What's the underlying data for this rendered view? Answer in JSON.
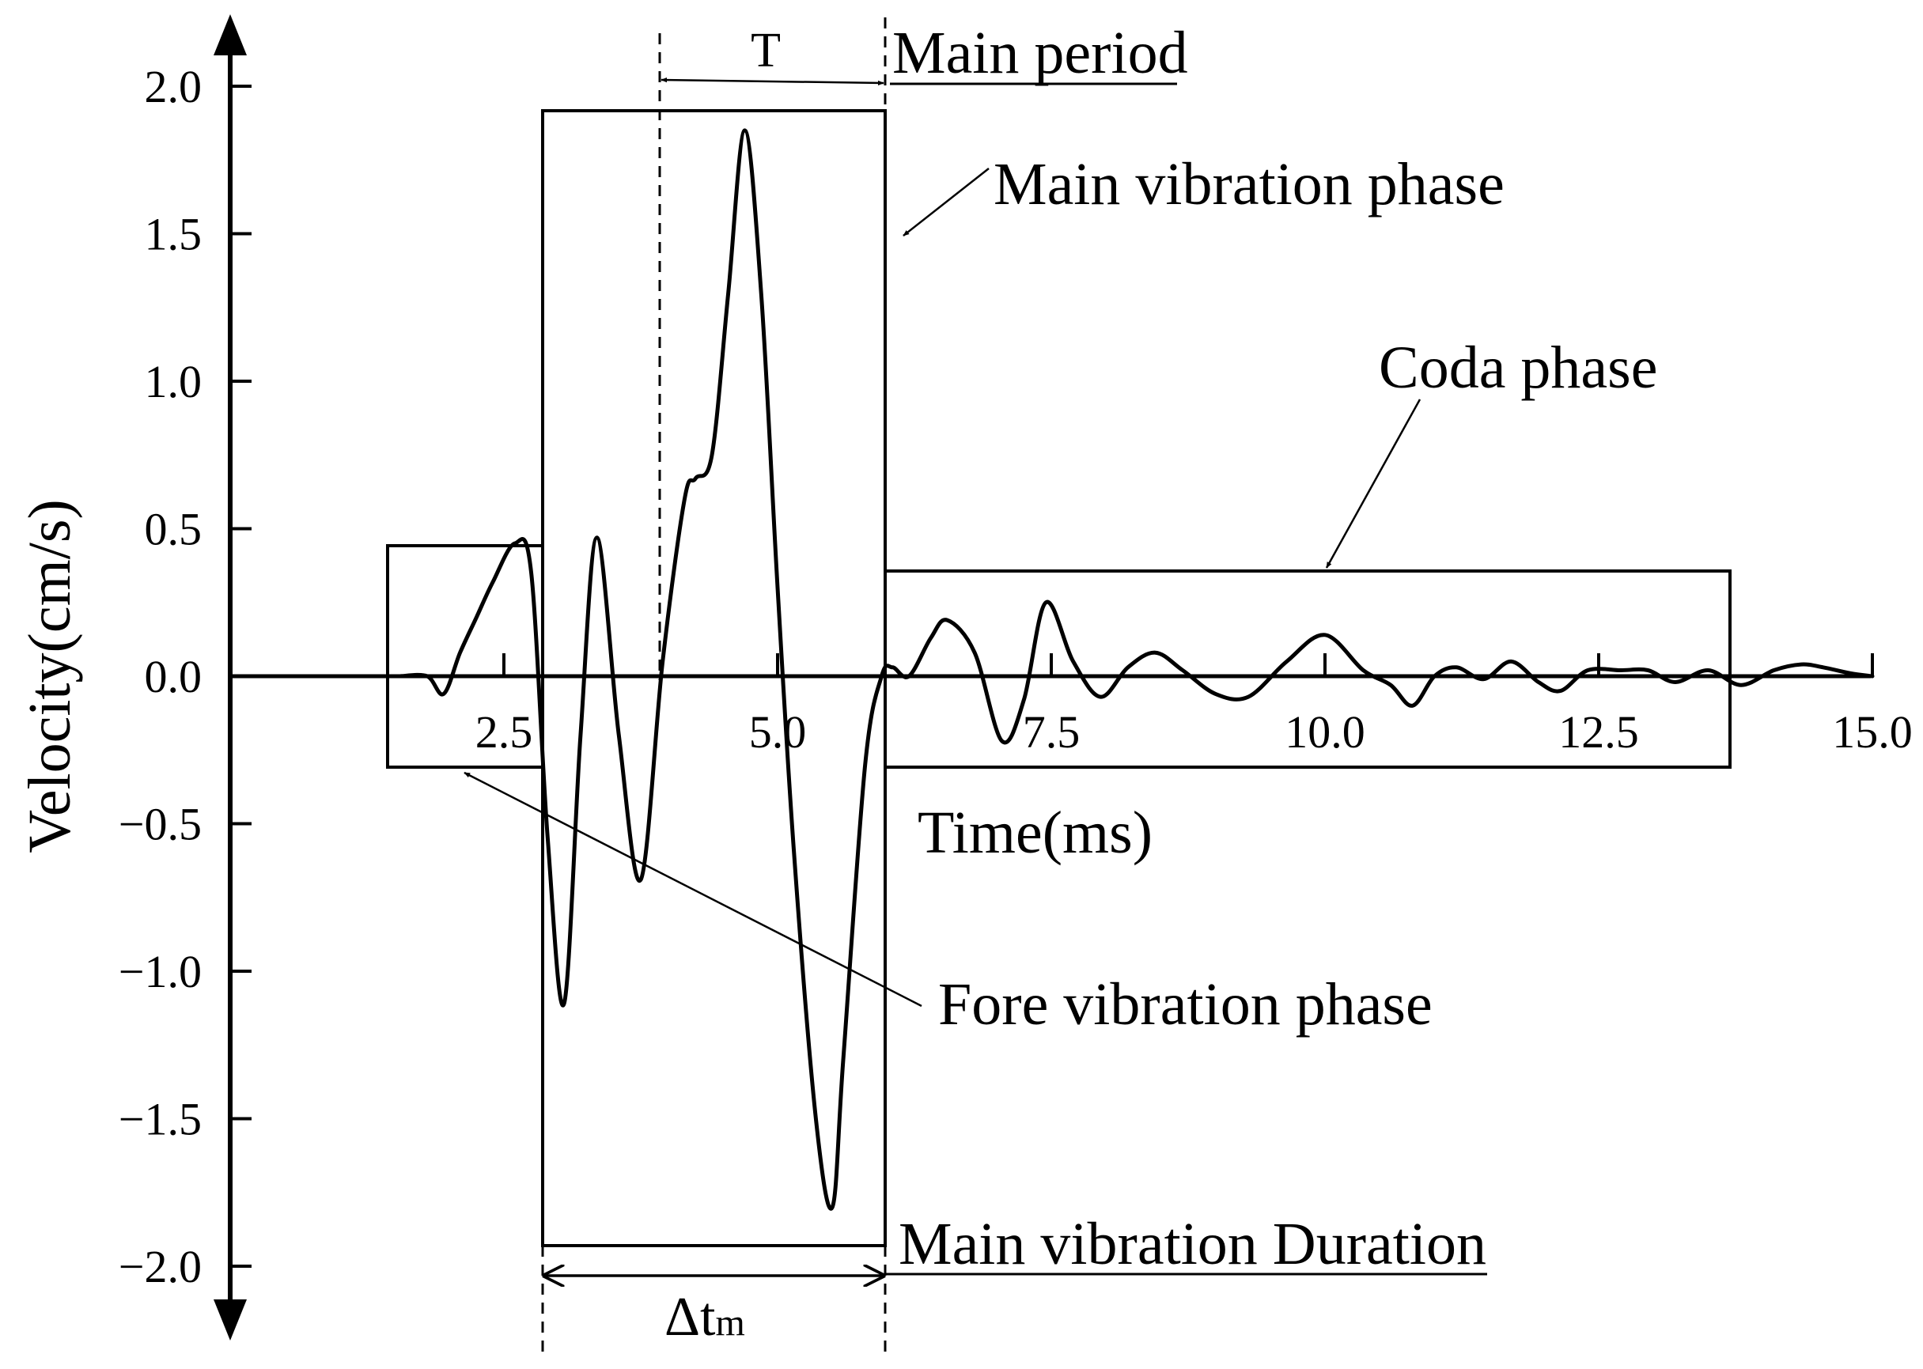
{
  "chart_data": {
    "type": "line",
    "title": "",
    "xlabel": "Time(ms)",
    "ylabel": "Velocity(cm/s)",
    "xlim": [
      0,
      15.0
    ],
    "ylim": [
      -2.0,
      2.0
    ],
    "x_ticks": [
      2.5,
      5.0,
      7.5,
      10.0,
      12.5,
      15.0
    ],
    "x_tick_labels": [
      "2.5",
      "5.0",
      "7.5",
      "10.0",
      "12.5",
      "15.0"
    ],
    "y_ticks": [
      2.0,
      1.5,
      1.0,
      0.5,
      0.0,
      -0.5,
      -1.0,
      -1.5,
      -2.0
    ],
    "y_tick_labels": [
      "2.0",
      "1.5",
      "1.0",
      "0.5",
      "0.0",
      "−0.5",
      "−1.0",
      "−1.5",
      "−2.0"
    ],
    "grid": false,
    "series": [
      {
        "x": [
          1.55,
          1.8,
          1.95,
          2.1,
          2.25,
          2.4,
          2.6,
          2.75,
          2.9,
          3.05,
          3.2,
          3.35,
          3.55,
          3.75,
          3.95,
          4.15,
          4.25,
          4.4,
          4.55,
          4.7,
          4.85,
          5.0,
          5.15,
          5.35,
          5.5,
          5.6,
          5.8,
          5.95,
          6.05,
          6.2,
          6.4,
          6.55,
          6.8,
          7.05,
          7.25,
          7.45,
          7.7,
          7.95,
          8.2,
          8.45,
          8.7,
          9.0,
          9.3,
          9.65,
          10.0,
          10.35,
          10.6,
          10.8,
          11.0,
          11.2,
          11.45,
          11.7,
          11.95,
          12.15,
          12.4,
          12.7,
          12.95,
          13.2,
          13.5,
          13.8,
          14.1,
          14.35,
          14.55,
          14.8,
          15.0
        ],
        "y": [
          0.0,
          0.0,
          -0.06,
          0.08,
          0.2,
          0.32,
          0.45,
          0.35,
          -0.55,
          -1.11,
          -0.2,
          0.47,
          -0.2,
          -0.69,
          0.05,
          0.6,
          0.67,
          0.75,
          1.3,
          1.85,
          1.3,
          0.3,
          -0.6,
          -1.5,
          -1.8,
          -1.3,
          -0.3,
          0.0,
          0.03,
          0.0,
          0.13,
          0.19,
          0.08,
          -0.22,
          -0.08,
          0.25,
          0.05,
          -0.07,
          0.03,
          0.08,
          0.02,
          -0.06,
          -0.07,
          0.05,
          0.14,
          0.02,
          -0.03,
          -0.1,
          0.0,
          0.03,
          -0.01,
          0.05,
          -0.02,
          -0.05,
          0.02,
          0.02,
          0.02,
          -0.02,
          0.02,
          -0.03,
          0.02,
          0.04,
          0.03,
          0.01,
          0.0
        ]
      }
    ],
    "annotations": {
      "fore_label": "Fore vibration phase",
      "main_label": "Main vibration phase",
      "coda_label": "Coda phase",
      "main_period_label": "Main period",
      "period_symbol": "T",
      "duration_label": "Main vibration Duration",
      "duration_symbol": "Δt",
      "duration_subscript": "m"
    }
  }
}
